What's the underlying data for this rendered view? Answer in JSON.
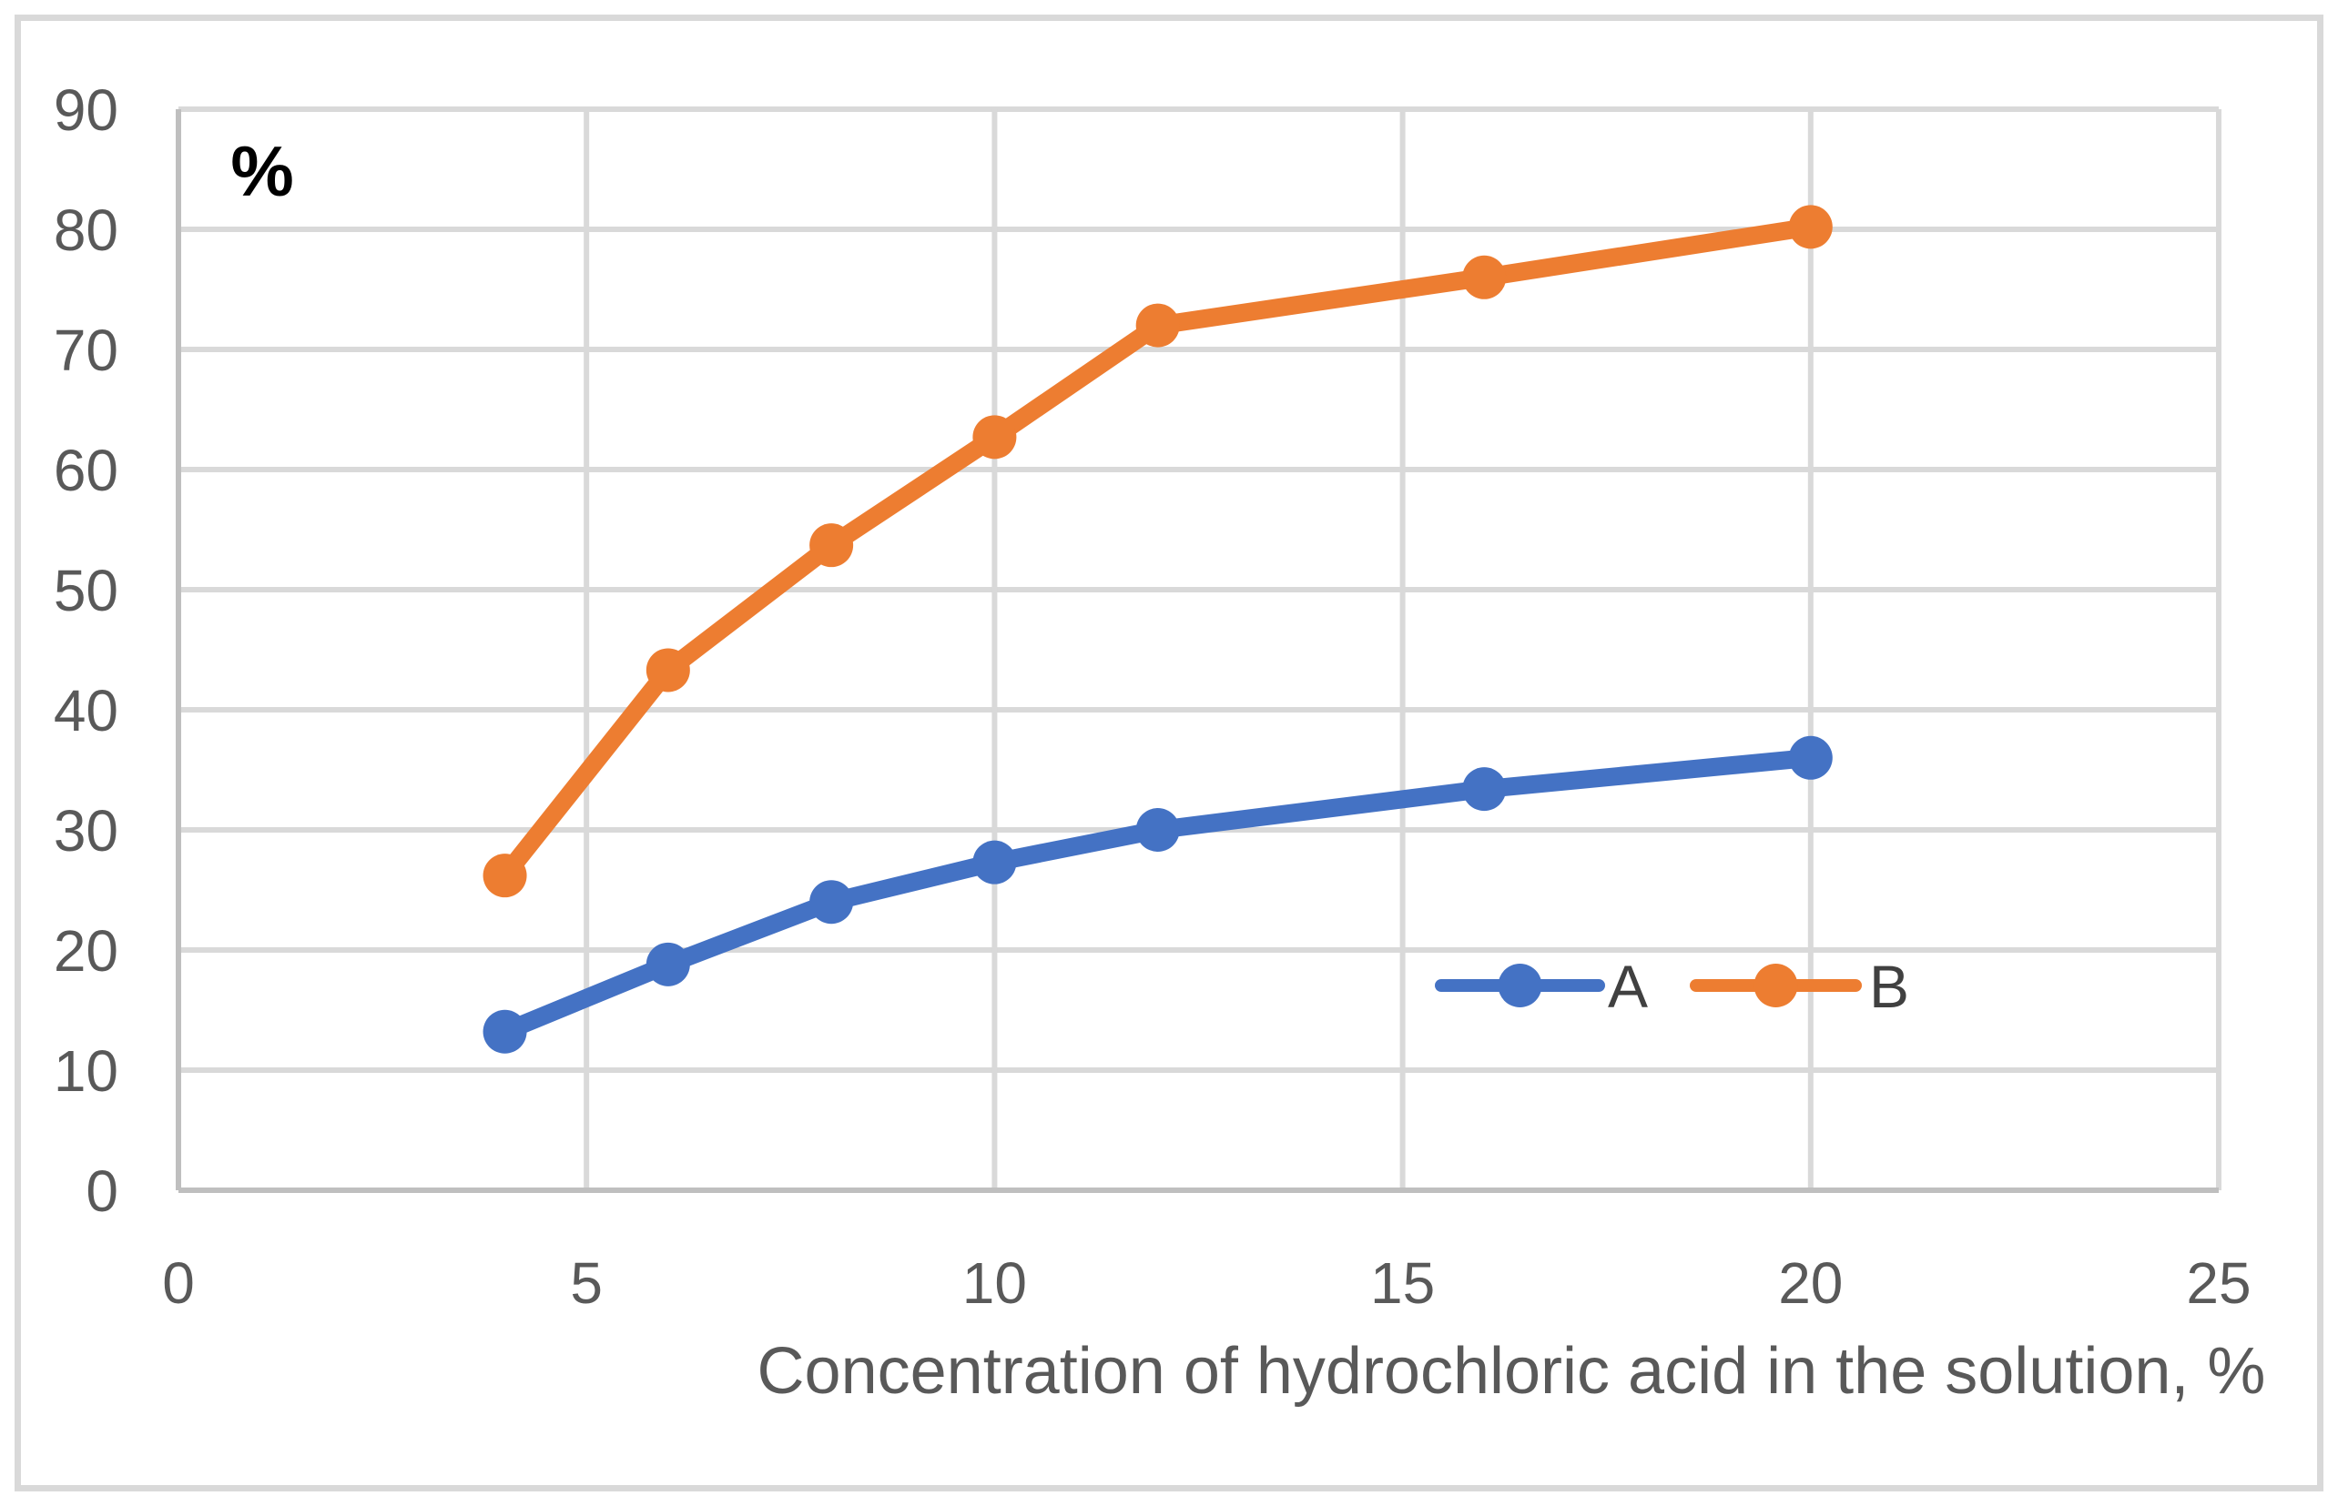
{
  "chart_data": {
    "type": "line",
    "title": "",
    "xlabel": "Concentration of hydrochloric acid in the solution, %",
    "ylabel": "%",
    "xlim": [
      0,
      25
    ],
    "ylim": [
      0,
      90
    ],
    "x_ticks": [
      0,
      5,
      10,
      15,
      20,
      25
    ],
    "y_ticks": [
      0,
      10,
      20,
      30,
      40,
      50,
      60,
      70,
      80,
      90
    ],
    "grid": true,
    "legend_position": "inside-plot-right-middle",
    "x": [
      4,
      6,
      8,
      10,
      12,
      16,
      20
    ],
    "series": [
      {
        "name": "A",
        "color": "#4472C4",
        "values": [
          13.2,
          18.8,
          24.0,
          27.3,
          30.0,
          33.4,
          36.0
        ]
      },
      {
        "name": "B",
        "color": "#ED7D31",
        "values": [
          26.2,
          43.3,
          53.7,
          62.7,
          72.0,
          76.0,
          80.2
        ]
      }
    ]
  },
  "colors": {
    "background": "#FFFFFF",
    "frame_border": "#D9D9D9",
    "gridline": "#D9D9D9",
    "axis_line": "#BFBFBF",
    "tick_text": "#595959",
    "axis_title_text": "#595959",
    "y_unit_text": "#000000",
    "legend_text": "#404040"
  },
  "legend": {
    "series_a_label": "A",
    "series_b_label": "B"
  }
}
